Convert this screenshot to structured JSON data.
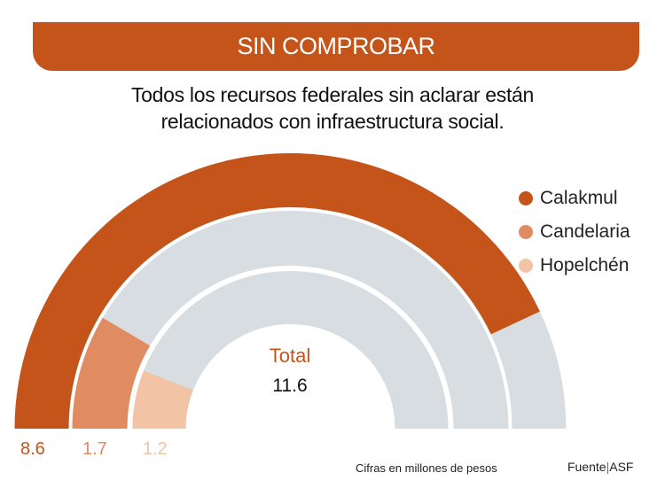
{
  "title": "SIN COMPROBAR",
  "subtitle_lines": [
    "Todos los recursos federales sin aclarar están",
    "relacionados con infraestructura social."
  ],
  "chart_data": {
    "type": "radial-bar",
    "scale_max": 10,
    "series": [
      {
        "name": "Calakmul",
        "value": 8.6,
        "label": "8.6",
        "color": "#C4541A"
      },
      {
        "name": "Candelaria",
        "value": 1.7,
        "label": "1.7",
        "color": "#E08B62"
      },
      {
        "name": "Hopelchén",
        "value": 1.2,
        "label": "1.2",
        "color": "#F2C3A5"
      }
    ],
    "track_color": "#D8DDE1",
    "total_label": "Total",
    "total_value": "11.6",
    "legend_placement": "right"
  },
  "footer": {
    "note": "Cifras en millones de pesos",
    "source_label": "Fuente",
    "source_value": "ASF"
  }
}
